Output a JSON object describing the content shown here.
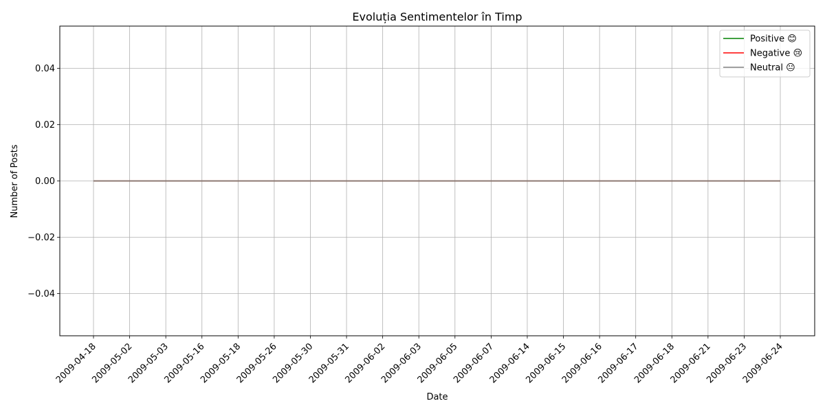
{
  "chart_data": {
    "type": "line",
    "title": "Evoluția Sentimentelor în Timp",
    "xlabel": "Date",
    "ylabel": "Number of Posts",
    "x": [
      "2009-04-18",
      "2009-05-02",
      "2009-05-03",
      "2009-05-16",
      "2009-05-18",
      "2009-05-26",
      "2009-05-30",
      "2009-05-31",
      "2009-06-02",
      "2009-06-03",
      "2009-06-05",
      "2009-06-07",
      "2009-06-14",
      "2009-06-15",
      "2009-06-16",
      "2009-06-17",
      "2009-06-18",
      "2009-06-21",
      "2009-06-23",
      "2009-06-24"
    ],
    "series": [
      {
        "name": "Positive 😊",
        "color": "#008000",
        "values": [
          0,
          0,
          0,
          0,
          0,
          0,
          0,
          0,
          0,
          0,
          0,
          0,
          0,
          0,
          0,
          0,
          0,
          0,
          0,
          0
        ]
      },
      {
        "name": "Negative 😢",
        "color": "#ff0000",
        "values": [
          0,
          0,
          0,
          0,
          0,
          0,
          0,
          0,
          0,
          0,
          0,
          0,
          0,
          0,
          0,
          0,
          0,
          0,
          0,
          0
        ]
      },
      {
        "name": "Neutral 😐",
        "color": "#808080",
        "values": [
          0,
          0,
          0,
          0,
          0,
          0,
          0,
          0,
          0,
          0,
          0,
          0,
          0,
          0,
          0,
          0,
          0,
          0,
          0,
          0
        ]
      }
    ],
    "ylim": [
      -0.055,
      0.055
    ],
    "yticks": [
      -0.04,
      -0.02,
      0.0,
      0.02,
      0.04
    ],
    "ytick_labels": [
      "−0.04",
      "−0.02",
      "0.00",
      "0.02",
      "0.04"
    ],
    "grid": true,
    "legend_position": "top-right",
    "x_tick_rotation": 45
  }
}
